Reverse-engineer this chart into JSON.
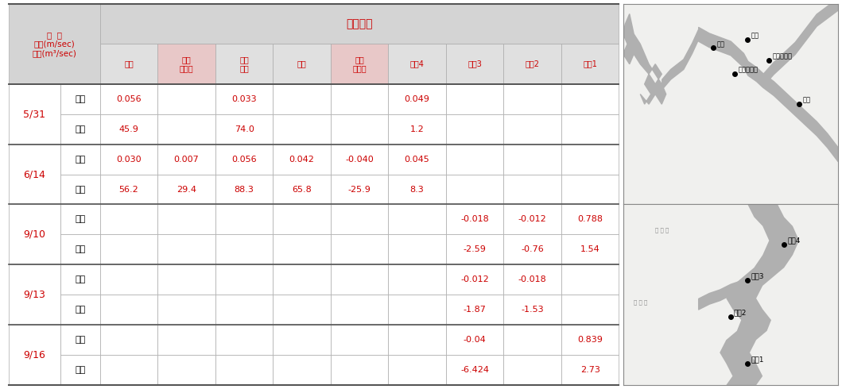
{
  "col_headers": [
    "장계",
    "추소\n합류전",
    "회남\n대교",
    "법수",
    "회남\n유입부",
    "추소4",
    "추소3",
    "추소2",
    "추소1"
  ],
  "header_label_line1": "일  자",
  "header_label_line2": "유속(m/sec)",
  "header_label_line3": "유량(m³/sec)",
  "header_chosa": "조사지점",
  "sub_labels": [
    "유속",
    "유량"
  ],
  "rows": [
    {
      "date": "5/31",
      "values": [
        [
          "0.056",
          "",
          "0.033",
          "",
          "",
          "0.049",
          "",
          "",
          ""
        ],
        [
          "45.9",
          "",
          "74.0",
          "",
          "",
          "1.2",
          "",
          "",
          ""
        ]
      ]
    },
    {
      "date": "6/14",
      "values": [
        [
          "0.030",
          "0.007",
          "0.056",
          "0.042",
          "-0.040",
          "0.045",
          "",
          "",
          ""
        ],
        [
          "56.2",
          "29.4",
          "88.3",
          "65.8",
          "-25.9",
          "8.3",
          "",
          "",
          ""
        ]
      ]
    },
    {
      "date": "9/10",
      "values": [
        [
          "",
          "",
          "",
          "",
          "",
          "",
          "-0.018",
          "-0.012",
          "0.788"
        ],
        [
          "",
          "",
          "",
          "",
          "",
          "",
          "-2.59",
          "-0.76",
          "1.54"
        ]
      ]
    },
    {
      "date": "9/13",
      "values": [
        [
          "",
          "",
          "",
          "",
          "",
          "",
          "-0.012",
          "-0.018",
          ""
        ],
        [
          "",
          "",
          "",
          "",
          "",
          "",
          "-1.87",
          "-1.53",
          ""
        ]
      ]
    },
    {
      "date": "9/16",
      "values": [
        [
          "",
          "",
          "",
          "",
          "",
          "",
          "-0.04",
          "",
          "0.839"
        ],
        [
          "",
          "",
          "",
          "",
          "",
          "",
          "-6.424",
          "",
          "2.73"
        ]
      ]
    }
  ],
  "header_bg": "#d4d4d4",
  "subheader_bg": "#e0e0e0",
  "special_col_bg": "#e8c8c8",
  "red": "#cc0000",
  "border_dark": "#555555",
  "border_light": "#aaaaaa",
  "fig_width": 10.59,
  "fig_height": 4.9
}
